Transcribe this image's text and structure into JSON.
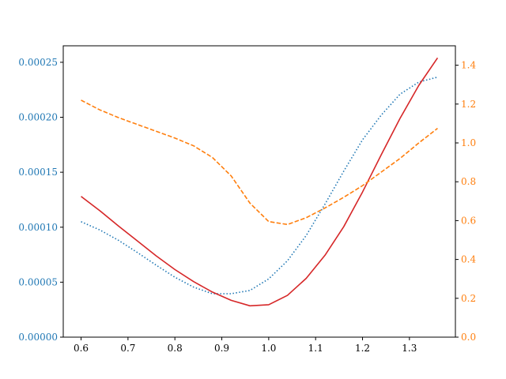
{
  "chart_data": {
    "type": "line",
    "title": "",
    "xlabel": "",
    "ylabel": "",
    "y2label": "",
    "grid": false,
    "legend": "none",
    "xlim": [
      0.562,
      1.398
    ],
    "ylim": [
      0.0,
      0.000265
    ],
    "y2lim": [
      0.0,
      1.5
    ],
    "xticks": [
      0.6,
      0.7,
      0.8,
      0.9,
      1.0,
      1.1,
      1.2,
      1.3
    ],
    "xtick_labels": [
      "0.6",
      "0.7",
      "0.8",
      "0.9",
      "1.0",
      "1.1",
      "1.2",
      "1.3"
    ],
    "yticks": [
      0.0,
      5e-05,
      0.0001,
      0.00015,
      0.0002,
      0.00025
    ],
    "ytick_labels": [
      "0.00000",
      "0.00005",
      "0.00010",
      "0.00015",
      "0.00020",
      "0.00025"
    ],
    "y2ticks": [
      0.0,
      0.2,
      0.4,
      0.6,
      0.8,
      1.0,
      1.2,
      1.4
    ],
    "y2tick_labels": [
      "0.0",
      "0.2",
      "0.4",
      "0.6",
      "0.8",
      "1.0",
      "1.2",
      "1.4"
    ],
    "left_axis_color": "#1f77b4",
    "right_axis_color": "#ff7f0e",
    "series": [
      {
        "axis": "left",
        "color": "#1f77b4",
        "style": "dotted",
        "x": [
          0.6,
          0.64,
          0.68,
          0.72,
          0.76,
          0.8,
          0.84,
          0.88,
          0.92,
          0.96,
          1.0,
          1.04,
          1.08,
          1.12,
          1.16,
          1.2,
          1.24,
          1.28,
          1.32,
          1.36
        ],
        "y": [
          0.000105,
          9.75e-05,
          8.8e-05,
          7.7e-05,
          6.55e-05,
          5.45e-05,
          4.55e-05,
          3.95e-05,
          3.95e-05,
          4.25e-05,
          5.3e-05,
          6.95e-05,
          9.25e-05,
          0.000121,
          0.000151,
          0.0001795,
          0.000202,
          0.000221,
          0.000232,
          0.0002365
        ]
      },
      {
        "axis": "left",
        "color": "#d62728",
        "style": "solid",
        "x": [
          0.6,
          0.64,
          0.68,
          0.72,
          0.76,
          0.8,
          0.84,
          0.88,
          0.92,
          0.96,
          1.0,
          1.04,
          1.08,
          1.12,
          1.16,
          1.2,
          1.24,
          1.28,
          1.32,
          1.36
        ],
        "y": [
          0.000128,
          0.000115,
          0.000101,
          8.75e-05,
          7.4e-05,
          6.15e-05,
          5.05e-05,
          4.1e-05,
          3.35e-05,
          2.85e-05,
          2.95e-05,
          3.8e-05,
          5.35e-05,
          7.45e-05,
          0.0001005,
          0.000132,
          0.000166,
          0.000199,
          0.000229,
          0.000254
        ]
      },
      {
        "axis": "right",
        "color": "#ff7f0e",
        "style": "dashed",
        "x": [
          0.6,
          0.64,
          0.68,
          0.72,
          0.76,
          0.8,
          0.84,
          0.88,
          0.92,
          0.96,
          1.0,
          1.04,
          1.08,
          1.12,
          1.16,
          1.2,
          1.24,
          1.28,
          1.32,
          1.36
        ],
        "y": [
          1.22,
          1.17,
          1.13,
          1.095,
          1.06,
          1.025,
          0.985,
          0.925,
          0.83,
          0.69,
          0.595,
          0.58,
          0.615,
          0.665,
          0.72,
          0.78,
          0.85,
          0.92,
          1.0,
          1.075
        ]
      }
    ]
  }
}
